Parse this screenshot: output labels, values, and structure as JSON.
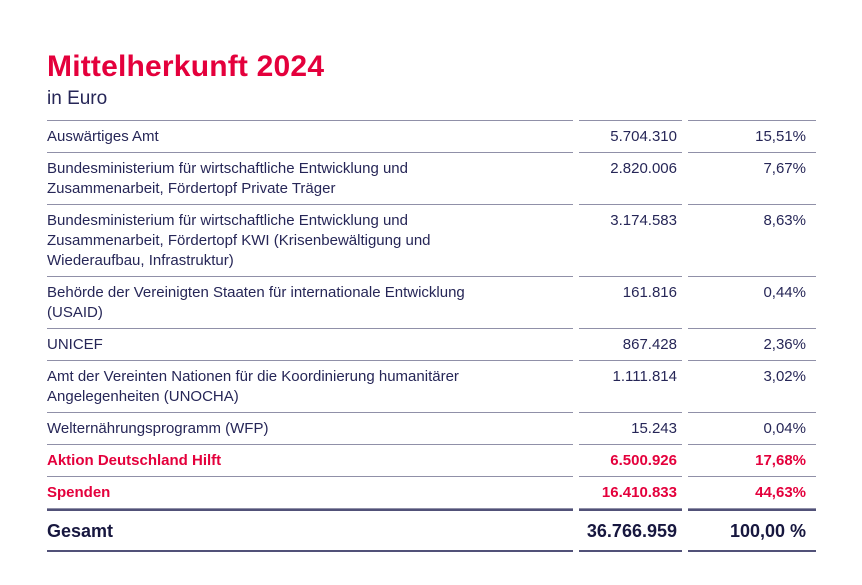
{
  "page": {
    "background": "#ffffff",
    "accent_red": "#e4003c",
    "text_navy": "#262657",
    "text_navy_dark": "#17173f",
    "divider_color": "#9090a8",
    "divider_strong_color": "#515178"
  },
  "header": {
    "title": "Mittelherkunft 2024",
    "subtitle": "in Euro"
  },
  "table": {
    "rows": [
      {
        "label_lines": [
          "Auswärtiges Amt"
        ],
        "amount": "5.704.310",
        "percent": "15,51%",
        "highlight": false
      },
      {
        "label_lines": [
          "Bundesministerium für wirtschaftliche Entwicklung und",
          "Zusammenarbeit, Fördertopf Private Träger"
        ],
        "amount": "2.820.006",
        "percent": "7,67%",
        "highlight": false
      },
      {
        "label_lines": [
          "Bundesministerium für wirtschaftliche Entwicklung und",
          "Zusammenarbeit, Fördertopf KWI (Krisenbewältigung und",
          "Wiederaufbau, Infrastruktur)"
        ],
        "amount": "3.174.583",
        "percent": "8,63%",
        "highlight": false
      },
      {
        "label_lines": [
          "Behörde der Vereinigten Staaten für internationale Entwicklung",
          "(USAID)"
        ],
        "amount": "161.816",
        "percent": "0,44%",
        "highlight": false
      },
      {
        "label_lines": [
          "UNICEF"
        ],
        "amount": "867.428",
        "percent": "2,36%",
        "highlight": false
      },
      {
        "label_lines": [
          "Amt der Vereinten Nationen für die Koordinierung humanitärer",
          "Angelegenheiten (UNOCHA)"
        ],
        "amount": "1.111.814",
        "percent": "3,02%",
        "highlight": false
      },
      {
        "label_lines": [
          "Welternährungsprogramm (WFP)"
        ],
        "amount": "15.243",
        "percent": "0,04%",
        "highlight": false
      },
      {
        "label_lines": [
          "Aktion Deutschland Hilft"
        ],
        "amount": "6.500.926",
        "percent": "17,68%",
        "highlight": true
      },
      {
        "label_lines": [
          "Spenden"
        ],
        "amount": "16.410.833",
        "percent": "44,63%",
        "highlight": true
      }
    ],
    "total": {
      "label": "Gesamt",
      "amount": "36.766.959",
      "percent": "100,00 %"
    }
  }
}
